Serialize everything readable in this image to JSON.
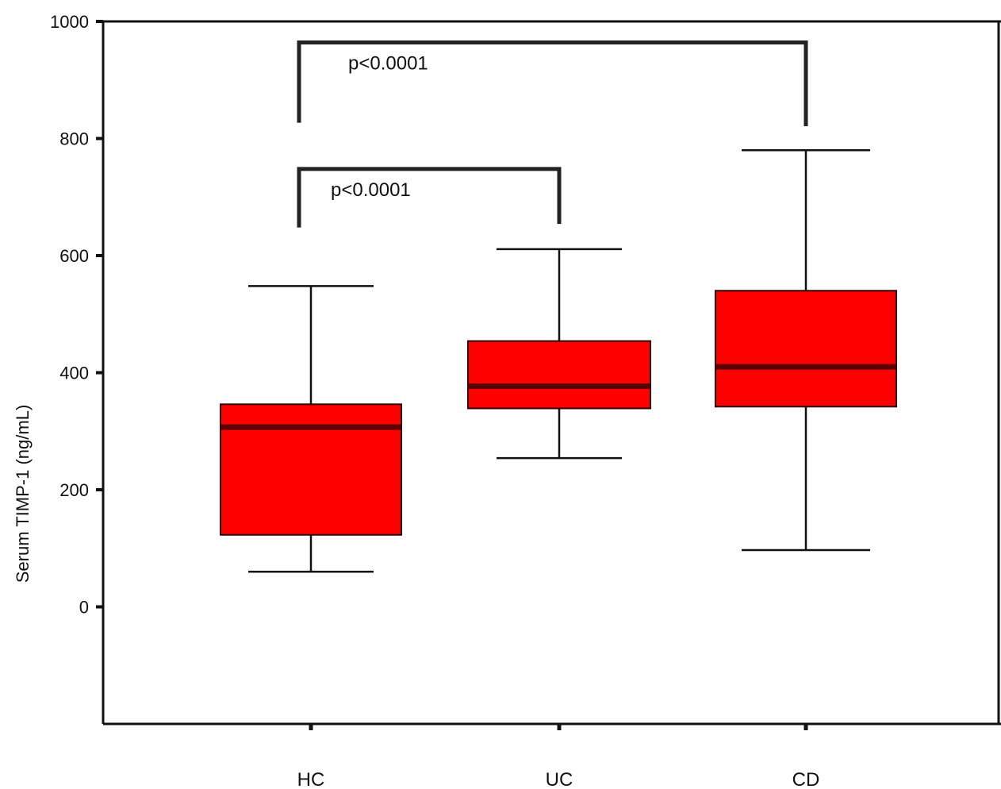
{
  "chart_data": {
    "type": "box",
    "title": "",
    "xlabel": "",
    "ylabel": "Serum TIMP-1 (ng/mL)",
    "ylim": [
      -200,
      1000
    ],
    "yticks": [
      0,
      200,
      400,
      600,
      800,
      1000
    ],
    "ytick_labels": [
      "0",
      "200",
      "400",
      "600",
      "800",
      "1000"
    ],
    "categories": [
      "HC",
      "UC",
      "CD"
    ],
    "box_color": "#ff0000",
    "median_color": "#5a0000",
    "boxes": [
      {
        "category": "HC",
        "whisker_low": 60,
        "q1": 123,
        "median": 307,
        "q3": 346,
        "whisker_high": 548
      },
      {
        "category": "UC",
        "whisker_low": 254,
        "q1": 339,
        "median": 377,
        "q3": 454,
        "whisker_high": 611
      },
      {
        "category": "CD",
        "whisker_low": 97,
        "q1": 342,
        "median": 410,
        "q3": 540,
        "whisker_high": 780
      }
    ],
    "comparisons": [
      {
        "from": "HC",
        "to": "UC",
        "label": "p<0.0001",
        "bracket_y": 748,
        "left_leg_bottom": 648,
        "right_leg_bottom": 654
      },
      {
        "from": "HC",
        "to": "CD",
        "label": "p<0.0001",
        "bracket_y": 964,
        "left_leg_bottom": 827,
        "right_leg_bottom": 821
      }
    ]
  }
}
